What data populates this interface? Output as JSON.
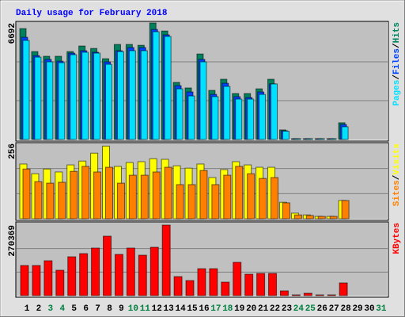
{
  "title": "Daily usage for February 2018",
  "chart_data": [
    {
      "type": "bar",
      "ylim": [
        0,
        6692
      ],
      "yticks": [
        6692
      ],
      "separator": "/",
      "series": [
        {
          "name": "Hits",
          "color": "#00805c",
          "values": [
            6370,
            5050,
            4780,
            4780,
            5050,
            5370,
            5230,
            4640,
            5460,
            5460,
            5410,
            6692,
            6230,
            3280,
            2960,
            4910,
            2820,
            3460,
            2640,
            2640,
            2910,
            3460,
            550,
            40,
            40,
            40,
            40,
            960,
            null,
            null,
            null
          ]
        },
        {
          "name": "Files",
          "color": "#0040ff",
          "values": [
            5870,
            4820,
            4600,
            4500,
            4960,
            5100,
            5010,
            4460,
            5100,
            5280,
            5280,
            6320,
            6010,
            3090,
            2730,
            4600,
            2590,
            3230,
            2460,
            2410,
            2730,
            3190,
            500,
            35,
            35,
            35,
            35,
            860,
            null,
            null,
            null
          ]
        },
        {
          "name": "Pages",
          "color": "#00e0ff",
          "values": [
            5690,
            4730,
            4460,
            4410,
            4870,
            5010,
            4960,
            4320,
            5050,
            5100,
            5100,
            6190,
            5920,
            2910,
            2500,
            4460,
            2460,
            3050,
            2320,
            2320,
            2590,
            3190,
            480,
            30,
            30,
            30,
            30,
            730,
            null,
            null,
            null
          ]
        }
      ]
    },
    {
      "type": "bar",
      "ylim": [
        0,
        256
      ],
      "yticks": [
        256
      ],
      "separator": "/",
      "series": [
        {
          "name": "Visits",
          "color": "#ffff00",
          "values": [
            186,
            153,
            169,
            159,
            183,
            196,
            223,
            247,
            178,
            191,
            194,
            204,
            202,
            180,
            172,
            186,
            140,
            167,
            194,
            183,
            175,
            175,
            56,
            19,
            13,
            8,
            8,
            62,
            null,
            null,
            null
          ]
        },
        {
          "name": "Sites",
          "color": "#ff8000",
          "values": [
            169,
            126,
            121,
            124,
            161,
            178,
            159,
            175,
            121,
            148,
            148,
            159,
            175,
            116,
            116,
            164,
            116,
            148,
            178,
            153,
            137,
            140,
            54,
            13,
            11,
            8,
            8,
            62,
            null,
            null,
            null
          ]
        }
      ]
    },
    {
      "type": "bar",
      "ylim": [
        0,
        270369
      ],
      "yticks": [
        270369
      ],
      "categories": [
        "1",
        "2",
        "3",
        "4",
        "5",
        "6",
        "7",
        "8",
        "9",
        "10",
        "11",
        "12",
        "13",
        "14",
        "15",
        "16",
        "17",
        "18",
        "19",
        "20",
        "21",
        "22",
        "23",
        "24",
        "25",
        "26",
        "27",
        "28",
        "29",
        "30",
        "31"
      ],
      "category_colors": [
        "#000",
        "#000",
        "#008040",
        "#008040",
        "#000",
        "#000",
        "#000",
        "#000",
        "#000",
        "#008040",
        "#008040",
        "#000",
        "#000",
        "#000",
        "#000",
        "#000",
        "#008040",
        "#008040",
        "#000",
        "#000",
        "#000",
        "#000",
        "#000",
        "#008040",
        "#008040",
        "#000",
        "#000",
        "#000",
        "#000",
        "#000",
        "#008040"
      ],
      "series": [
        {
          "name": "KBytes",
          "color": "#ff0000",
          "values": [
            115440,
            115440,
            133670,
            97220,
            148860,
            161010,
            182280,
            227850,
            157980,
            182280,
            154940,
            185320,
            270369,
            72910,
            57720,
            103290,
            103290,
            51650,
            127600,
            82030,
            85060,
            85060,
            18230,
            3040,
            9110,
            3040,
            3040,
            48610,
            null,
            null,
            null
          ]
        }
      ]
    }
  ]
}
